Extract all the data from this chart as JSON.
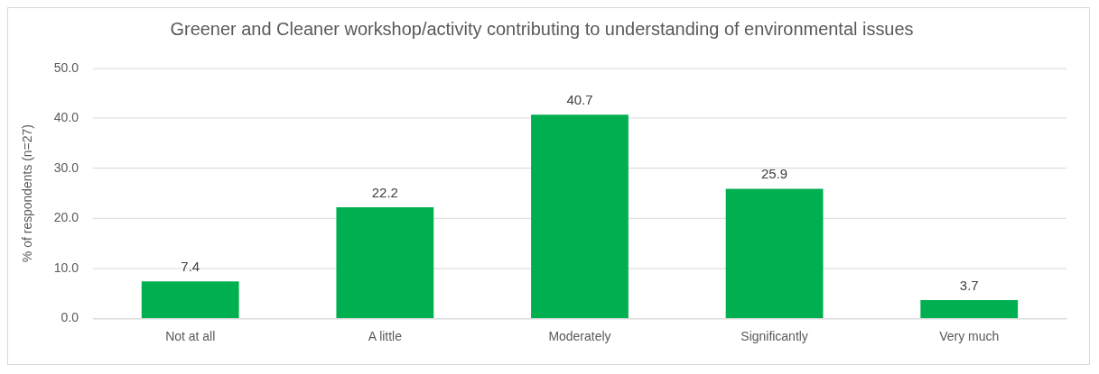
{
  "chart_data": {
    "type": "bar",
    "title": "Greener and Cleaner workshop/activity contributing to understanding of environmental issues",
    "ylabel": "% of respondents (n=27)",
    "categories": [
      "Not at all",
      "A little",
      "Moderately",
      "Significantly",
      "Very much"
    ],
    "values": [
      7.4,
      22.2,
      40.7,
      25.9,
      3.7
    ],
    "color": "#00b050",
    "ylim": [
      0,
      50
    ],
    "yticks": [
      {
        "value": 0,
        "label": "0.0"
      },
      {
        "value": 10,
        "label": "10.0"
      },
      {
        "value": 20,
        "label": "20.0"
      },
      {
        "value": 30,
        "label": "30.0"
      },
      {
        "value": 40,
        "label": "40.0"
      },
      {
        "value": 50,
        "label": "50.0"
      }
    ],
    "grid": "y",
    "data_labels": true,
    "legend": false
  }
}
